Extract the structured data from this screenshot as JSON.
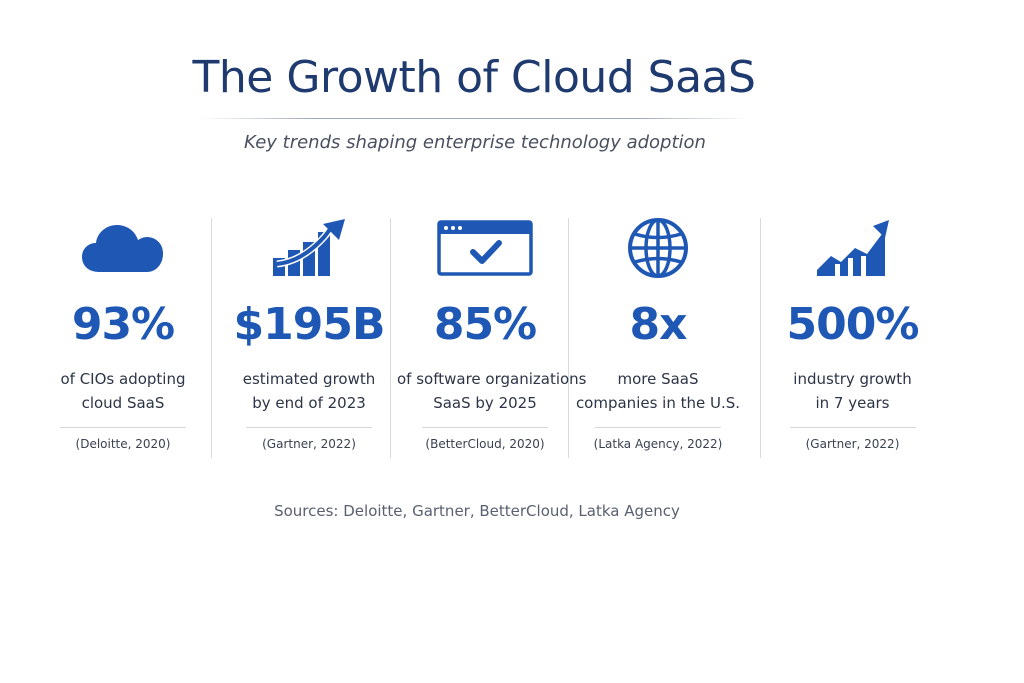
{
  "header": {
    "title": "The Growth of Cloud SaaS",
    "subtitle": "Key trends shaping enterprise technology adoption"
  },
  "stats": [
    {
      "icon": "cloud-icon",
      "value": "93%",
      "desc_line1": "of CIOs adopting",
      "desc_line2": "cloud SaaS",
      "source": "(Deloitte, 2020)"
    },
    {
      "icon": "growth-bar-chart-icon",
      "value": "$195B",
      "desc_line1": "estimated growth",
      "desc_line2": "by end of 2023",
      "source": "(Gartner, 2022)"
    },
    {
      "icon": "browser-check-icon",
      "value": "85%",
      "desc_line1": "of software organizations",
      "desc_line2": "SaaS by 2025",
      "source": "(BetterCloud, 2020)"
    },
    {
      "icon": "globe-icon",
      "value": "8x",
      "desc_line1": "more SaaS",
      "desc_line2": "companies in the U.S.",
      "source": "(Latka Agency, 2022)"
    },
    {
      "icon": "growth-area-chart-icon",
      "value": "500%",
      "desc_line1": "industry growth",
      "desc_line2": "in 7 years",
      "source": "(Gartner, 2022)"
    }
  ],
  "footer": {
    "sources": "Sources: Deloitte, Gartner, BetterCloud, Latka Agency"
  },
  "colors": {
    "title": "#1e3a6e",
    "accent": "#1f58b4",
    "body_text": "#2d3546"
  }
}
